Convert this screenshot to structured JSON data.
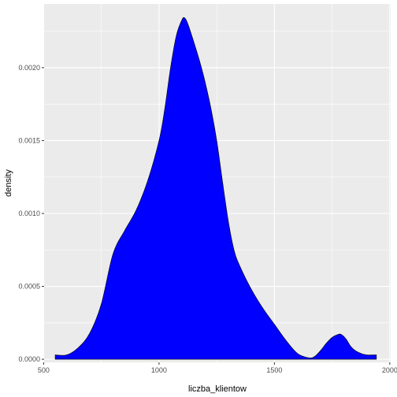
{
  "chart_data": {
    "type": "area",
    "title": "",
    "xlabel": "liczba_klientow",
    "ylabel": "density",
    "xlim": [
      502,
      2004
    ],
    "ylim": [
      -2.1e-05,
      0.002437
    ],
    "x_ticks": [
      500,
      1000,
      1500,
      2000
    ],
    "x_tick_labels": [
      "500",
      "1000",
      "1500",
      "2000"
    ],
    "y_ticks": [
      0.0,
      0.0005,
      0.001,
      0.0015,
      0.002
    ],
    "y_tick_labels": [
      "0.0000",
      "0.0005",
      "0.0010",
      "0.0015",
      "0.0020"
    ],
    "grid": true,
    "legend": "none",
    "fill_color": "#0000FF",
    "panel_background": "#EBEBEB",
    "series": [
      {
        "x": [
          550,
          600,
          650,
          700,
          750,
          800,
          850,
          900,
          950,
          1000,
          1025,
          1050,
          1075,
          1100,
          1112,
          1125,
          1150,
          1175,
          1200,
          1225,
          1250,
          1275,
          1300,
          1325,
          1350,
          1400,
          1450,
          1500,
          1550,
          1600,
          1650,
          1675,
          1700,
          1725,
          1750,
          1775,
          1790,
          1810,
          1830,
          1850,
          1875,
          1900,
          1942
        ],
        "y": [
          3e-05,
          3e-05,
          8e-05,
          0.00018,
          0.00038,
          0.00072,
          0.00088,
          0.00102,
          0.00122,
          0.0015,
          0.00172,
          0.002,
          0.00222,
          0.00233,
          0.00234,
          0.0023,
          0.00218,
          0.00205,
          0.0019,
          0.00172,
          0.0015,
          0.00122,
          0.00095,
          0.00075,
          0.00064,
          0.00048,
          0.00035,
          0.00024,
          0.00013,
          4e-05,
          1e-05,
          2e-05,
          6e-05,
          0.00011,
          0.00015,
          0.00017,
          0.00017,
          0.00014,
          9e-05,
          6e-05,
          4e-05,
          3e-05,
          3e-05
        ]
      }
    ]
  }
}
